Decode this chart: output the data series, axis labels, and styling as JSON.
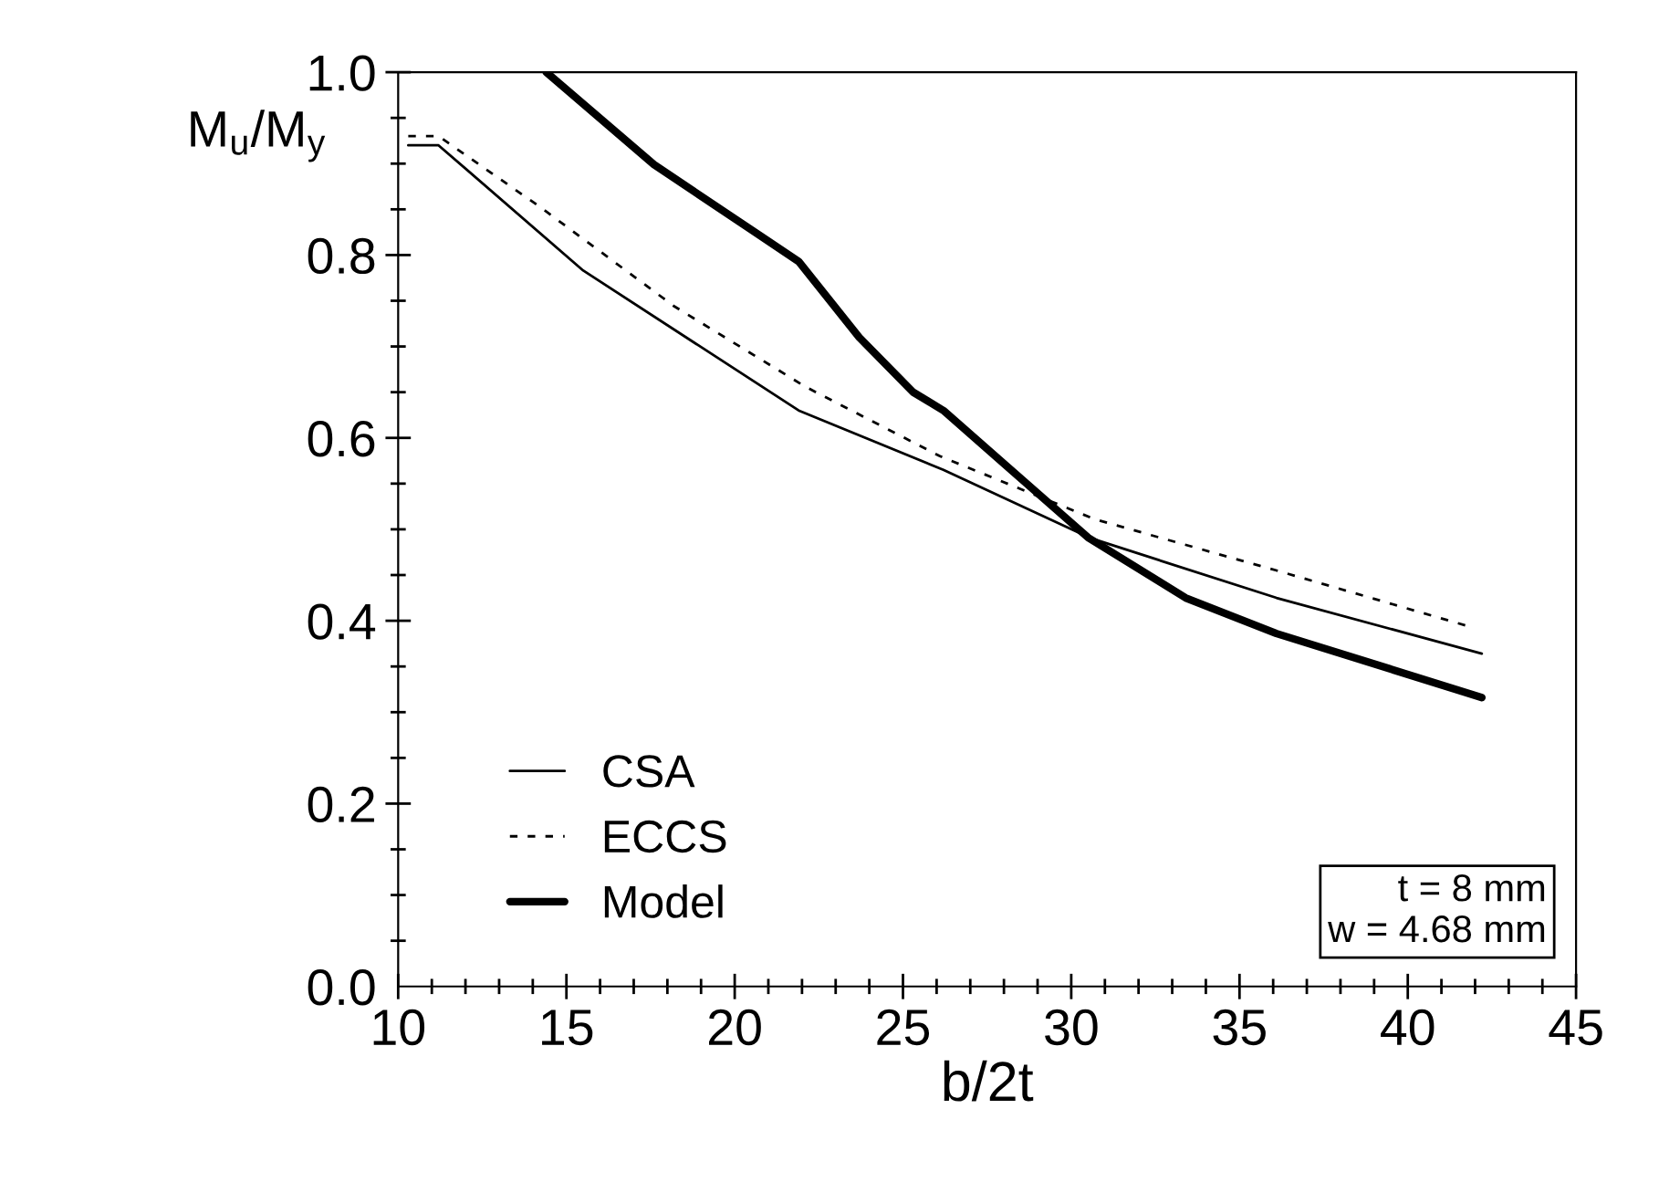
{
  "chart_data": {
    "type": "line",
    "xlabel": "b/2t",
    "ylabel": "M$_{u}$/M$_{y}$",
    "xlim": [
      10,
      45
    ],
    "ylim": [
      0,
      1
    ],
    "xticks": [
      10,
      {
        "value": 11,
        "label": null
      },
      {
        "value": 12,
        "label": null
      },
      {
        "value": 13,
        "label": null
      },
      {
        "value": 14,
        "label": null
      },
      15,
      {
        "value": 16,
        "label": null
      },
      {
        "value": 17,
        "label": null
      },
      {
        "value": 18,
        "label": null
      },
      {
        "value": 19,
        "label": null
      },
      20,
      {
        "value": 21,
        "label": null
      },
      {
        "value": 22,
        "label": null
      },
      {
        "value": 23,
        "label": null
      },
      {
        "value": 24,
        "label": null
      },
      25,
      {
        "value": 26,
        "label": null
      },
      {
        "value": 27,
        "label": null
      },
      {
        "value": 28,
        "label": null
      },
      {
        "value": 29,
        "label": null
      },
      30,
      {
        "value": 31,
        "label": null
      },
      {
        "value": 32,
        "label": null
      },
      {
        "value": 33,
        "label": null
      },
      {
        "value": 34,
        "label": null
      },
      35,
      {
        "value": 36,
        "label": null
      },
      {
        "value": 37,
        "label": null
      },
      {
        "value": 38,
        "label": null
      },
      {
        "value": 39,
        "label": null
      },
      40,
      {
        "value": 41,
        "label": null
      },
      {
        "value": 42,
        "label": null
      },
      {
        "value": 43,
        "label": null
      },
      {
        "value": 44,
        "label": null
      },
      45
    ],
    "yticks": [
      {
        "value": 0,
        "label": "0.0"
      },
      {
        "value": 0.05,
        "label": null
      },
      {
        "value": 0.1,
        "label": null
      },
      {
        "value": 0.15,
        "label": null
      },
      0.2,
      {
        "value": 0.25,
        "label": null
      },
      {
        "value": 0.3,
        "label": null
      },
      {
        "value": 0.35,
        "label": null
      },
      0.4,
      {
        "value": 0.45,
        "label": null
      },
      {
        "value": 0.5,
        "label": null
      },
      {
        "value": 0.55,
        "label": null
      },
      0.6,
      {
        "value": 0.65,
        "label": null
      },
      {
        "value": 0.7,
        "label": null
      },
      {
        "value": 0.75,
        "label": null
      },
      0.8,
      {
        "value": 0.85,
        "label": null
      },
      {
        "value": 0.9,
        "label": null
      },
      {
        "value": 0.95,
        "label": null
      },
      {
        "value": 1,
        "label": "1.0"
      }
    ],
    "grid": false,
    "legend": "bottom left",
    "marker": "none",
    "annotations": [
      "t = 8 mm\nw = 4.68 mm"
    ],
    "series": [
      {
        "name": "CSA",
        "color": "#000000",
        "line_style": "solid",
        "x": [
          10.3,
          11.2,
          15.5,
          21.9,
          26.2,
          30.6,
          36.1,
          42.2
        ],
        "values": [
          0.92,
          0.92,
          0.783,
          0.63,
          0.565,
          0.49,
          0.425,
          0.364
        ]
      },
      {
        "name": "ECCS",
        "color": "#000000",
        "line_style": "dashed",
        "x": [
          10.3,
          11.2,
          14.2,
          18.2,
          22.1,
          26.1,
          30.7,
          36.1,
          41.8
        ],
        "values": [
          0.93,
          0.93,
          0.853,
          0.744,
          0.656,
          0.58,
          0.511,
          0.455,
          0.394
        ]
      },
      {
        "name": "Model",
        "color": "#000000",
        "line_style": "solid",
        "x": [
          14.4,
          17.6,
          21.9,
          23.7,
          25.3,
          26.2,
          30.5,
          33.4,
          36.1,
          42.2
        ],
        "values": [
          1.0,
          0.899,
          0.793,
          0.71,
          0.65,
          0.63,
          0.491,
          0.425,
          0.386,
          0.316
        ]
      }
    ]
  }
}
